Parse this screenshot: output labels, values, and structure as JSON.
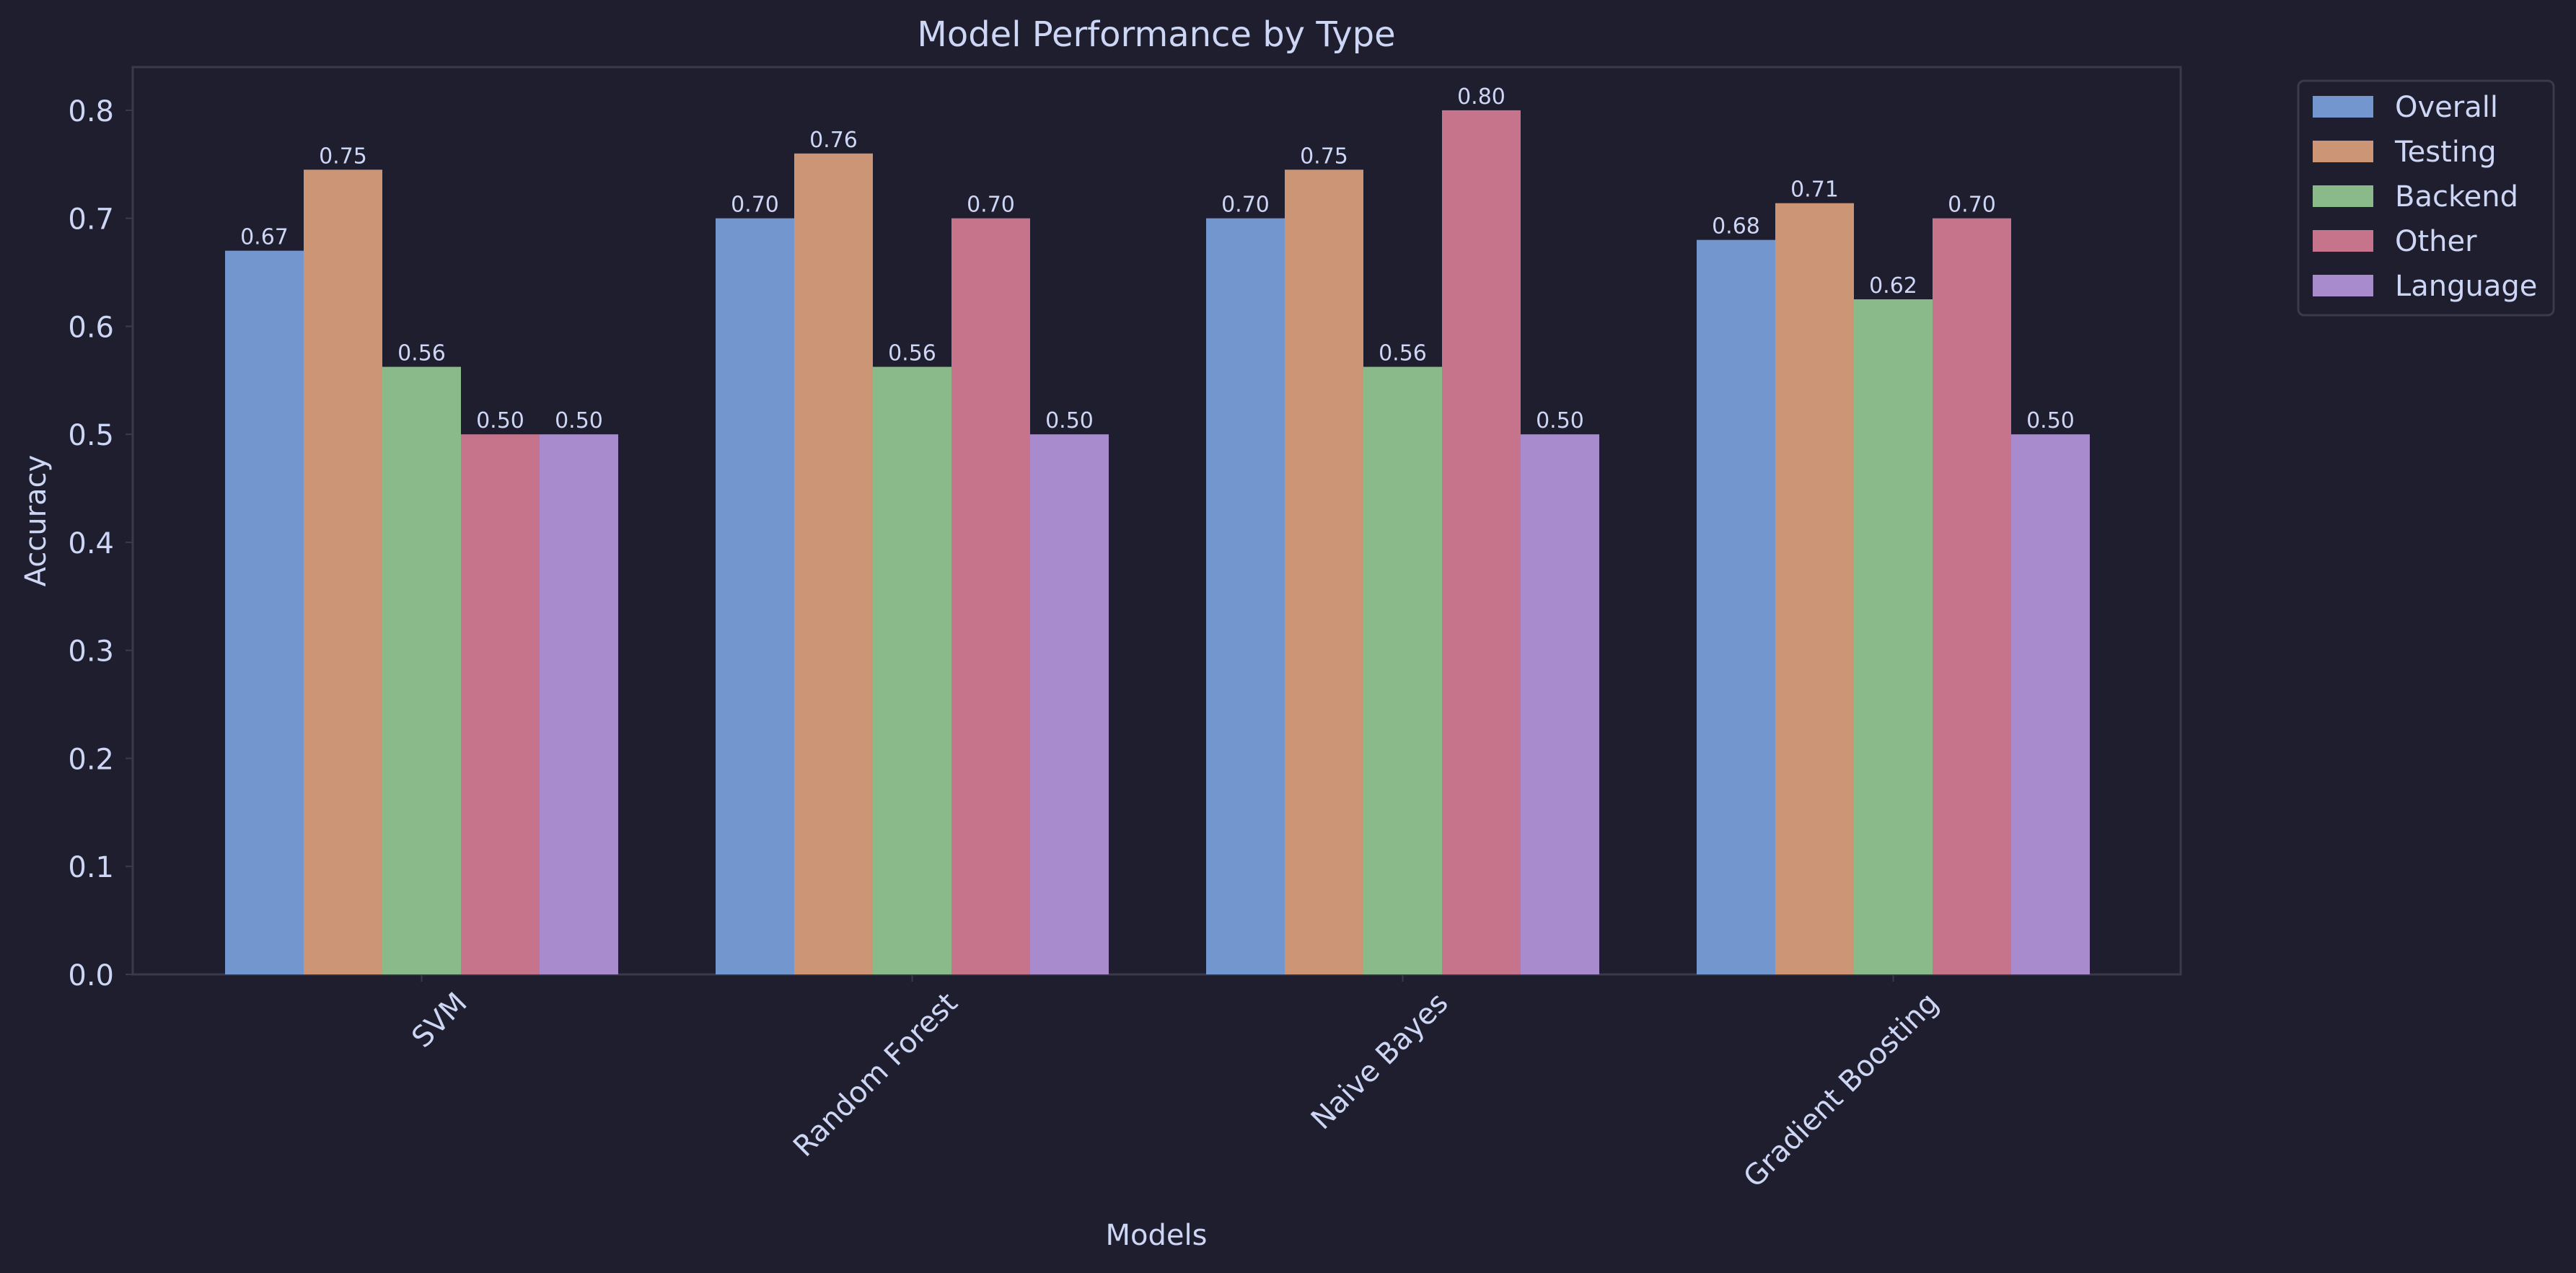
{
  "chart_data": {
    "type": "bar",
    "title": "Model Performance by Type",
    "xlabel": "Models",
    "ylabel": "Accuracy",
    "categories": [
      "SVM",
      "Random Forest",
      "Naive Bayes",
      "Gradient Boosting"
    ],
    "series": [
      {
        "name": "Overall",
        "color": "#7396ce",
        "values": [
          0.67,
          0.7,
          0.7,
          0.68
        ],
        "labels": [
          "0.67",
          "0.70",
          "0.70",
          "0.68"
        ]
      },
      {
        "name": "Testing",
        "color": "#cc9575",
        "values": [
          0.745,
          0.76,
          0.745,
          0.714
        ],
        "labels": [
          "0.75",
          "0.76",
          "0.75",
          "0.71"
        ]
      },
      {
        "name": "Backend",
        "color": "#8ab98a",
        "values": [
          0.5625,
          0.5625,
          0.5625,
          0.625
        ],
        "labels": [
          "0.56",
          "0.56",
          "0.56",
          "0.62"
        ]
      },
      {
        "name": "Other",
        "color": "#c6748c",
        "values": [
          0.5,
          0.7,
          0.8,
          0.7
        ],
        "labels": [
          "0.50",
          "0.70",
          "0.80",
          "0.70"
        ]
      },
      {
        "name": "Language",
        "color": "#a78bcc",
        "values": [
          0.5,
          0.5,
          0.5,
          0.5
        ],
        "labels": [
          "0.50",
          "0.50",
          "0.50",
          "0.50"
        ]
      }
    ],
    "ylim": [
      0,
      0.84
    ],
    "yticks": [
      0.0,
      0.1,
      0.2,
      0.3,
      0.4,
      0.5,
      0.6,
      0.7,
      0.8
    ],
    "ytick_labels": [
      "0.0",
      "0.1",
      "0.2",
      "0.3",
      "0.4",
      "0.5",
      "0.6",
      "0.7",
      "0.8"
    ],
    "grid": false,
    "legend_position": "outside-top-right"
  },
  "theme": {
    "background": "#1e1e2e",
    "plot_background": "#1e1e2e",
    "axes_edge": "#3a3a4c",
    "text": "#cdd6f4",
    "legend_background": "#1e1e2e",
    "legend_edge": "#3a3a4c"
  }
}
